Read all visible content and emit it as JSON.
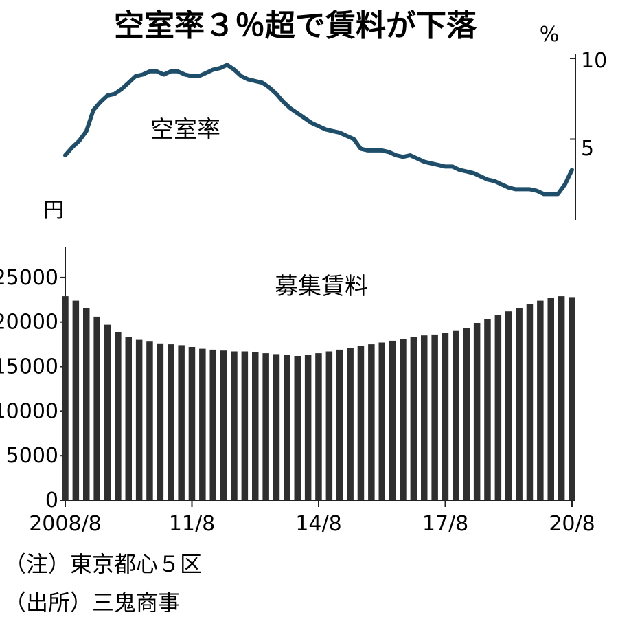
{
  "title": "空室率３％超で賃料が下落",
  "notes": [
    "（注）東京都心５区",
    "（出所）三鬼商事"
  ],
  "chart_data": [
    {
      "type": "line",
      "series_label": "空室率",
      "unit": "%",
      "ylim": [
        0,
        10
      ],
      "y_ticks": [
        "5",
        "10"
      ],
      "axis_side": "right",
      "color": "#1f4e6b",
      "points": [
        [
          "2008-08",
          4.0
        ],
        [
          "2008-10",
          4.5
        ],
        [
          "2008-12",
          4.9
        ],
        [
          "2009-02",
          5.5
        ],
        [
          "2009-04",
          6.8
        ],
        [
          "2009-06",
          7.3
        ],
        [
          "2009-08",
          7.7
        ],
        [
          "2009-10",
          7.8
        ],
        [
          "2009-12",
          8.1
        ],
        [
          "2010-02",
          8.5
        ],
        [
          "2010-04",
          8.9
        ],
        [
          "2010-06",
          9.0
        ],
        [
          "2010-08",
          9.2
        ],
        [
          "2010-10",
          9.2
        ],
        [
          "2010-12",
          9.0
        ],
        [
          "2011-02",
          9.2
        ],
        [
          "2011-04",
          9.2
        ],
        [
          "2011-06",
          9.0
        ],
        [
          "2011-08",
          8.9
        ],
        [
          "2011-10",
          8.9
        ],
        [
          "2011-12",
          9.1
        ],
        [
          "2012-02",
          9.3
        ],
        [
          "2012-04",
          9.4
        ],
        [
          "2012-06",
          9.6
        ],
        [
          "2012-08",
          9.3
        ],
        [
          "2012-10",
          8.9
        ],
        [
          "2012-12",
          8.7
        ],
        [
          "2013-02",
          8.6
        ],
        [
          "2013-04",
          8.5
        ],
        [
          "2013-06",
          8.2
        ],
        [
          "2013-08",
          7.8
        ],
        [
          "2013-10",
          7.3
        ],
        [
          "2013-12",
          6.9
        ],
        [
          "2014-02",
          6.6
        ],
        [
          "2014-04",
          6.3
        ],
        [
          "2014-06",
          6.0
        ],
        [
          "2014-08",
          5.8
        ],
        [
          "2014-10",
          5.6
        ],
        [
          "2014-12",
          5.5
        ],
        [
          "2015-02",
          5.4
        ],
        [
          "2015-04",
          5.2
        ],
        [
          "2015-06",
          5.0
        ],
        [
          "2015-08",
          4.4
        ],
        [
          "2015-10",
          4.3
        ],
        [
          "2015-12",
          4.3
        ],
        [
          "2016-02",
          4.3
        ],
        [
          "2016-04",
          4.2
        ],
        [
          "2016-06",
          4.0
        ],
        [
          "2016-08",
          3.9
        ],
        [
          "2016-10",
          4.0
        ],
        [
          "2016-12",
          3.8
        ],
        [
          "2017-02",
          3.6
        ],
        [
          "2017-04",
          3.5
        ],
        [
          "2017-06",
          3.4
        ],
        [
          "2017-08",
          3.3
        ],
        [
          "2017-10",
          3.3
        ],
        [
          "2017-12",
          3.1
        ],
        [
          "2018-02",
          3.0
        ],
        [
          "2018-04",
          2.9
        ],
        [
          "2018-06",
          2.7
        ],
        [
          "2018-08",
          2.5
        ],
        [
          "2018-10",
          2.4
        ],
        [
          "2018-12",
          2.2
        ],
        [
          "2019-02",
          2.0
        ],
        [
          "2019-04",
          1.9
        ],
        [
          "2019-06",
          1.9
        ],
        [
          "2019-08",
          1.9
        ],
        [
          "2019-10",
          1.8
        ],
        [
          "2019-12",
          1.6
        ],
        [
          "2020-02",
          1.6
        ],
        [
          "2020-04",
          1.6
        ],
        [
          "2020-06",
          2.2
        ],
        [
          "2020-08",
          3.1
        ]
      ]
    },
    {
      "type": "bar",
      "series_label": "募集賃料",
      "unit": "円",
      "ylim": [
        0,
        28000
      ],
      "y_ticks": [
        "0",
        "5000",
        "10000",
        "15000",
        "20000",
        "25000"
      ],
      "axis_side": "left",
      "x_ticks": [
        "2008/8",
        "11/8",
        "14/8",
        "17/8",
        "20/8"
      ],
      "x_tick_dates": [
        "2008-08",
        "2011-08",
        "2014-08",
        "2017-08",
        "2020-08"
      ],
      "x_range": [
        "2008-08",
        "2020-08"
      ],
      "bar_color": "#2f2f2f",
      "points": [
        [
          "2008-08",
          22900
        ],
        [
          "2008-11",
          22400
        ],
        [
          "2009-02",
          21600
        ],
        [
          "2009-05",
          20600
        ],
        [
          "2009-08",
          19700
        ],
        [
          "2009-11",
          18900
        ],
        [
          "2010-02",
          18300
        ],
        [
          "2010-05",
          18000
        ],
        [
          "2010-08",
          17800
        ],
        [
          "2010-11",
          17600
        ],
        [
          "2011-02",
          17500
        ],
        [
          "2011-05",
          17400
        ],
        [
          "2011-08",
          17200
        ],
        [
          "2011-11",
          17000
        ],
        [
          "2012-02",
          16900
        ],
        [
          "2012-05",
          16800
        ],
        [
          "2012-08",
          16700
        ],
        [
          "2012-11",
          16700
        ],
        [
          "2013-02",
          16600
        ],
        [
          "2013-05",
          16500
        ],
        [
          "2013-08",
          16400
        ],
        [
          "2013-11",
          16300
        ],
        [
          "2014-02",
          16200
        ],
        [
          "2014-05",
          16300
        ],
        [
          "2014-08",
          16500
        ],
        [
          "2014-11",
          16700
        ],
        [
          "2015-02",
          16900
        ],
        [
          "2015-05",
          17100
        ],
        [
          "2015-08",
          17300
        ],
        [
          "2015-11",
          17500
        ],
        [
          "2016-02",
          17700
        ],
        [
          "2016-05",
          17900
        ],
        [
          "2016-08",
          18100
        ],
        [
          "2016-11",
          18300
        ],
        [
          "2017-02",
          18500
        ],
        [
          "2017-05",
          18600
        ],
        [
          "2017-08",
          18800
        ],
        [
          "2017-11",
          19000
        ],
        [
          "2018-02",
          19300
        ],
        [
          "2018-05",
          19900
        ],
        [
          "2018-08",
          20300
        ],
        [
          "2018-11",
          20800
        ],
        [
          "2019-02",
          21200
        ],
        [
          "2019-05",
          21600
        ],
        [
          "2019-08",
          22000
        ],
        [
          "2019-11",
          22400
        ],
        [
          "2020-02",
          22700
        ],
        [
          "2020-05",
          22900
        ],
        [
          "2020-08",
          22800
        ]
      ]
    }
  ]
}
